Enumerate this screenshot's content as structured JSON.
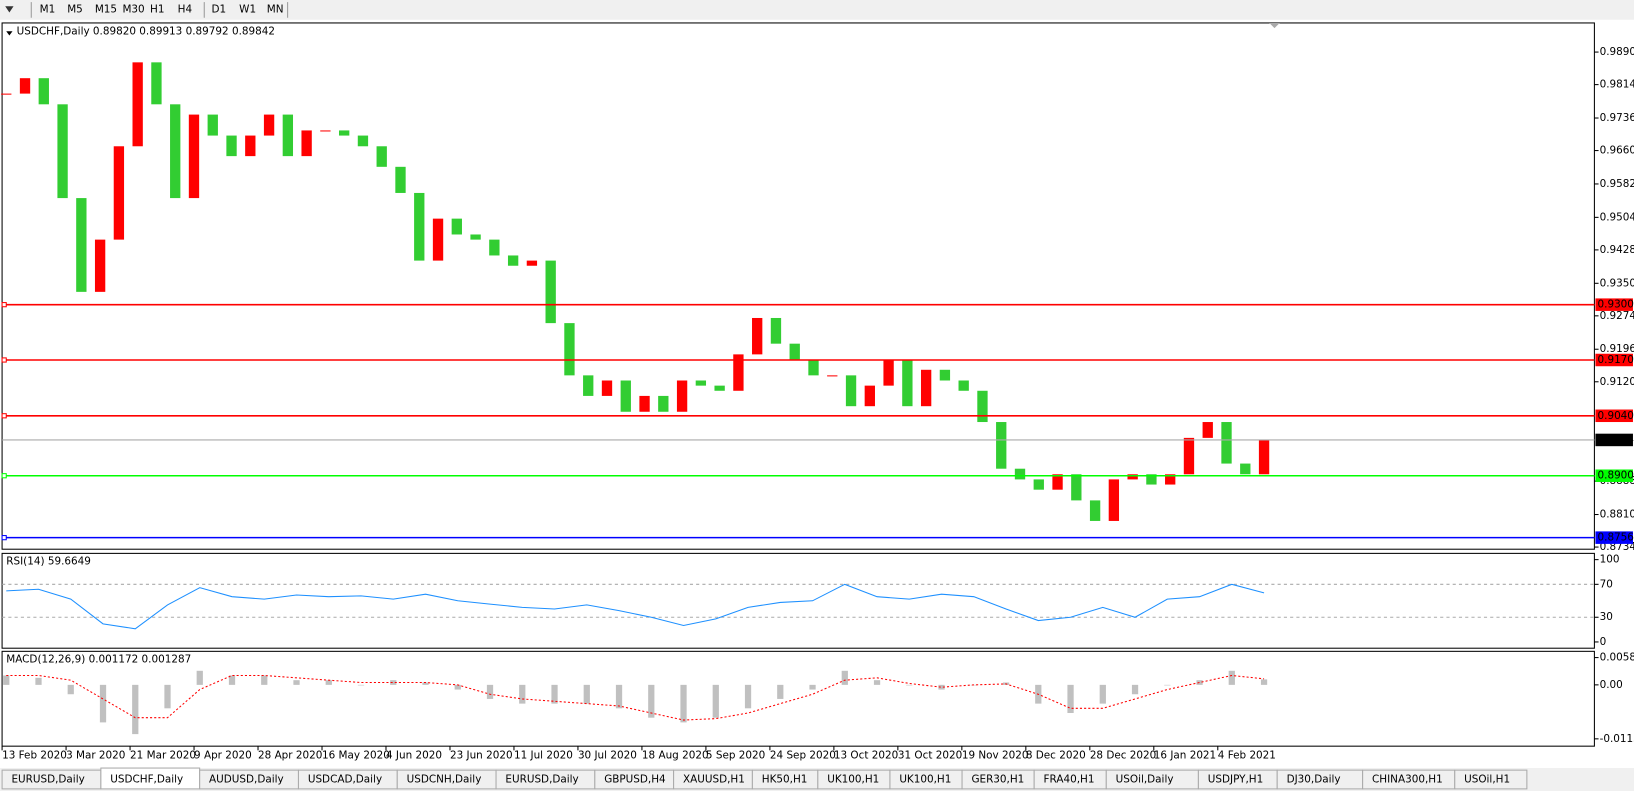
{
  "toolbar": [
    "M1",
    "M5",
    "M15",
    "M30",
    "H1",
    "H4",
    "D1",
    "W1",
    "MN"
  ],
  "chart_data": {
    "type": "candlestick",
    "title": "USDCHF,Daily  0.89820 0.89913 0.89792 0.89842",
    "closes": [
      0.9793,
      0.9829,
      0.9768,
      0.9549,
      0.933,
      0.9452,
      0.967,
      0.9866,
      0.9768,
      0.9549,
      0.9744,
      0.9695,
      0.9647,
      0.9695,
      0.9744,
      0.9647,
      0.9707,
      0.9707,
      0.9695,
      0.967,
      0.9622,
      0.9561,
      0.9403,
      0.9501,
      0.9464,
      0.9452,
      0.9415,
      0.9391,
      0.9403,
      0.9257,
      0.9135,
      0.9087,
      0.9123,
      0.905,
      0.9087,
      0.905,
      0.9123,
      0.9111,
      0.9099,
      0.9184,
      0.9269,
      0.9209,
      0.9172,
      0.9135,
      0.9135,
      0.9063,
      0.9111,
      0.9172,
      0.9063,
      0.9148,
      0.9123,
      0.9099,
      0.9026,
      0.8917,
      0.8892,
      0.8868,
      0.8904,
      0.8843,
      0.8795,
      0.8892,
      0.8904,
      0.888,
      0.8904,
      0.8989,
      0.9026,
      0.8929,
      0.8904,
      0.89842
    ],
    "up_color": "#ff0000",
    "down_color": "#32cd32",
    "ylim": [
      0.8729,
      0.9958
    ],
    "yticks": [
      {
        "value": 0.989,
        "label": "0.98900"
      },
      {
        "value": 0.9814,
        "label": "0.98140"
      },
      {
        "value": 0.9736,
        "label": "0.97360"
      },
      {
        "value": 0.966,
        "label": "0.96600"
      },
      {
        "value": 0.9582,
        "label": "0.95820"
      },
      {
        "value": 0.9504,
        "label": "0.95040"
      },
      {
        "value": 0.9428,
        "label": "0.94280"
      },
      {
        "value": 0.935,
        "label": "0.93500"
      },
      {
        "value": 0.9274,
        "label": "0.92740"
      },
      {
        "value": 0.9196,
        "label": "0.91960"
      },
      {
        "value": 0.912,
        "label": "0.91200"
      },
      {
        "value": 0.8888,
        "label": "0.88880"
      },
      {
        "value": 0.881,
        "label": "0.88100"
      },
      {
        "value": 0.8734,
        "label": "0.87340"
      }
    ],
    "levels": [
      {
        "value": 0.93001,
        "color": "#ff0000"
      },
      {
        "value": 0.91709,
        "color": "#ff0000"
      },
      {
        "value": 0.90406,
        "color": "#ff0000"
      },
      {
        "value": 0.89006,
        "color": "#00ff00"
      },
      {
        "value": 0.8756,
        "label": "0.87560",
        "color": "#0000ff"
      }
    ],
    "bid": 0.89842,
    "x_labels": [
      "13 Feb 2020",
      "3 Mar 2020",
      "21 Mar 2020",
      "9 Apr 2020",
      "28 Apr 2020",
      "16 May 2020",
      "4 Jun 2020",
      "23 Jun 2020",
      "11 Jul 2020",
      "30 Jul 2020",
      "18 Aug 2020",
      "5 Sep 2020",
      "24 Sep 2020",
      "13 Oct 2020",
      "31 Oct 2020",
      "19 Nov 2020",
      "8 Dec 2020",
      "28 Dec 2020",
      "16 Jan 2021",
      "4 Feb 2021"
    ]
  },
  "rsi": {
    "title": "RSI(14) 59.6649",
    "color": "#1e90ff",
    "ylim": [
      -7.6,
      107.6
    ],
    "yticks": [
      100,
      70,
      30,
      0
    ],
    "levels": [
      70,
      30
    ],
    "values": [
      62,
      64,
      52,
      22,
      16,
      45,
      66,
      55,
      52,
      57,
      55,
      56,
      52,
      58,
      50,
      46,
      42,
      40,
      45,
      38,
      30,
      20,
      28,
      42,
      48,
      50,
      70,
      55,
      52,
      58,
      55,
      40,
      26,
      30,
      42,
      30,
      52,
      55,
      70,
      59.6649
    ]
  },
  "macd": {
    "title": "MACD(12,26,9) 0.001172 0.001287",
    "ylim": [
      -0.01307,
      0.00715
    ],
    "yticks": [
      0.005818,
      {
        "value": 0,
        "label": "0.00"
      },
      -0.01151
    ],
    "histogram": [
      0.002,
      0.0015,
      -0.002,
      -0.008,
      -0.0105,
      -0.005,
      0.003,
      0.002,
      0.002,
      0.001,
      0.001,
      0.0,
      0.001,
      0.0005,
      -0.001,
      -0.003,
      -0.004,
      -0.004,
      -0.004,
      -0.005,
      -0.007,
      -0.008,
      -0.007,
      -0.005,
      -0.003,
      -0.001,
      0.003,
      0.001,
      0.0,
      -0.001,
      0.0,
      0.0005,
      -0.004,
      -0.006,
      -0.004,
      -0.002,
      0.0,
      0.001,
      0.003,
      0.001172
    ],
    "signal": [
      0.002,
      0.002,
      0.001,
      -0.003,
      -0.007,
      -0.007,
      -0.001,
      0.002,
      0.002,
      0.0015,
      0.001,
      0.0005,
      0.0005,
      0.0005,
      0.0,
      -0.002,
      -0.003,
      -0.0035,
      -0.004,
      -0.0045,
      -0.006,
      -0.0075,
      -0.0072,
      -0.006,
      -0.004,
      -0.002,
      0.001,
      0.0015,
      0.0003,
      -0.0005,
      0.0,
      0.0002,
      -0.002,
      -0.005,
      -0.005,
      -0.003,
      -0.001,
      0.0005,
      0.002,
      0.001287
    ]
  },
  "tabs": [
    "EURUSD,Daily",
    "USDCHF,Daily",
    "AUDUSD,Daily",
    "USDCAD,Daily",
    "USDCNH,Daily",
    "EURUSD,Daily",
    "GBPUSD,H4",
    "XAUUSD,H1",
    "HK50,H1",
    "UK100,H1",
    "UK100,H1",
    "GER30,H1",
    "FRA40,H1",
    "USOil,Daily",
    "USDJPY,H1",
    "DJ30,Daily",
    "CHINA300,H1",
    "USOil,H1"
  ],
  "active_tab": 1
}
